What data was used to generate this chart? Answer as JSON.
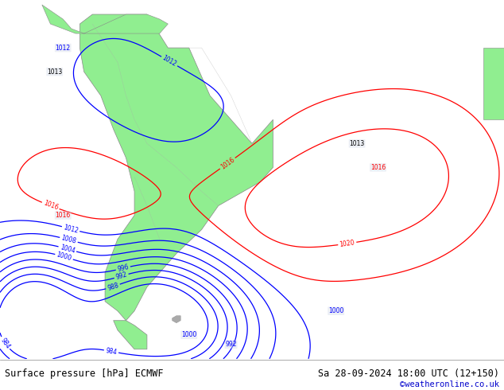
{
  "title_left": "Surface pressure [hPa] ECMWF",
  "title_right": "Sa 28-09-2024 18:00 UTC (12+150)",
  "credit": "©weatheronline.co.uk",
  "credit_color": "#0000cc",
  "bg_color": "#d0d8e8",
  "land_color": "#90ee90",
  "fig_width": 6.34,
  "fig_height": 4.9,
  "dpi": 100,
  "bottom_bar_color": "#ffffff",
  "font_size_title": 8.5,
  "font_size_credit": 7.5
}
